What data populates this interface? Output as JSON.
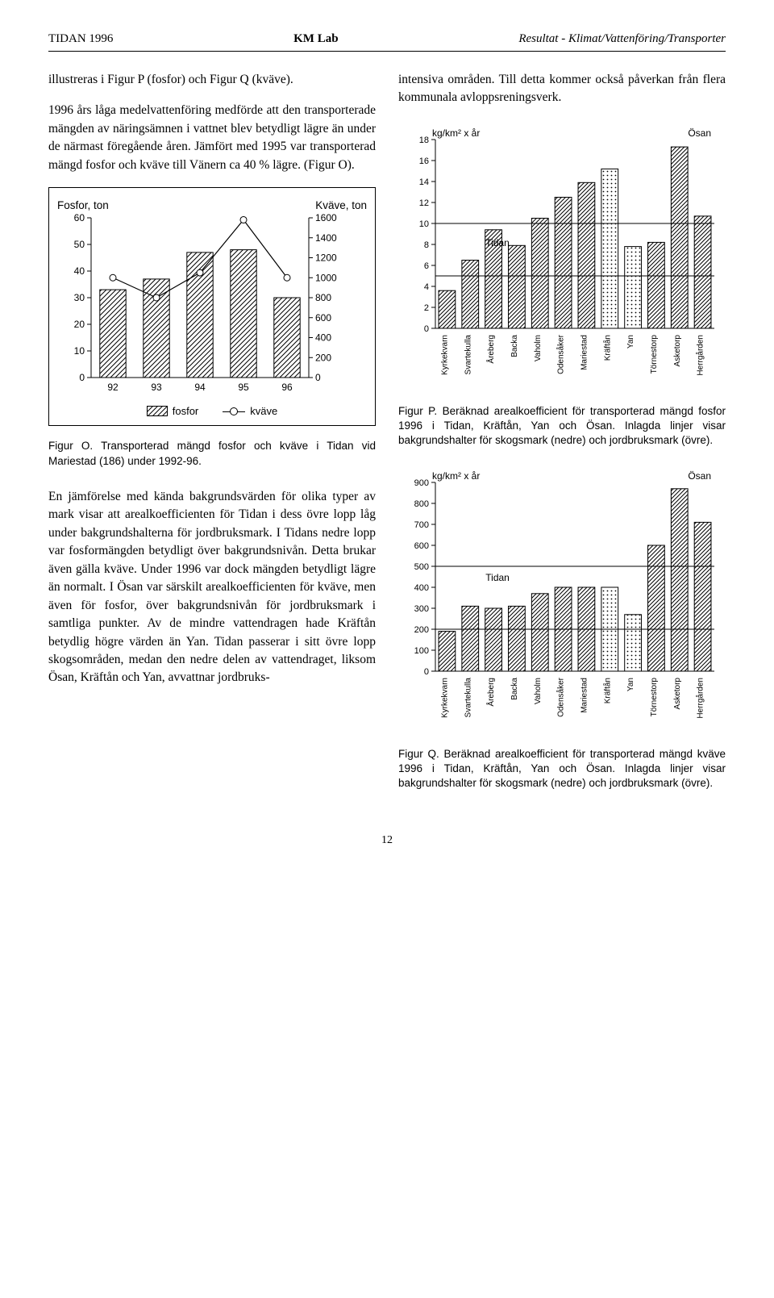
{
  "header": {
    "left": "TIDAN 1996",
    "center": "KM Lab",
    "right": "Resultat - Klimat/Vattenföring/Transporter"
  },
  "col_left": {
    "para1": "illustreras i Figur P (fosfor) och Figur Q (kväve).",
    "para2": "1996 års låga medelvattenföring medförde att den transporterade mängden av näringsämnen i vattnet blev betydligt lägre än under de närmast föregående åren. Jämfört med 1995 var transporterad mängd fosfor och kväve till Vänern ca 40 % lägre. (Figur O).",
    "chartO": {
      "left_axis_label": "Fosfor, ton",
      "right_axis_label": "Kväve, ton",
      "years": [
        "92",
        "93",
        "94",
        "95",
        "96"
      ],
      "fosfor_values": [
        33,
        37,
        47,
        48,
        30
      ],
      "kvave_values": [
        1000,
        800,
        1050,
        1580,
        1000
      ],
      "left_ylim": [
        0,
        60
      ],
      "left_ytick_step": 10,
      "right_ylim": [
        0,
        1600
      ],
      "right_ytick_step": 200,
      "bar_pattern": "diag-hatch",
      "legend": {
        "bar": "fosfor",
        "line": "kväve"
      },
      "stroke": "#000000",
      "bg": "#ffffff"
    },
    "captionO": "Figur O. Transporterad mängd fosfor och kväve i Tidan vid Mariestad (186) under 1992-96.",
    "para3": "En jämförelse med kända bakgrundsvärden för olika typer av mark visar att arealkoefficienten för Tidan i dess övre lopp låg under bakgrundshalterna för jordbruksmark. I Tidans nedre lopp var fosformängden betydligt över bakgrundsnivån. Detta brukar även gälla kväve. Under 1996 var dock mängden betydligt lägre än normalt. I Ösan var särskilt arealkoefficienten för kväve, men även för fosfor, över bakgrundsnivån för jordbruksmark i samtliga punkter. Av de mindre vattendragen hade Kräftån betydlig högre värden än Yan. Tidan passerar i sitt övre lopp skogsområden, medan den nedre delen av vattendraget, liksom Ösan, Kräftån och Yan, avvattnar jordbruks-"
  },
  "col_right": {
    "para1": "intensiva områden. Till detta kommer också påverkan från flera kommunala avloppsreningsverk.",
    "chartP": {
      "ylabel": "kg/km² x år",
      "annot_right": "Ösan",
      "annot_inside": "Tidan",
      "categories": [
        "Kyrkekvarn",
        "Svartekulla",
        "Åreberg",
        "Backa",
        "Vaholm",
        "Odensåker",
        "Mariestad",
        "Kräftån",
        "Yan",
        "Törnestorp",
        "Asketorp",
        "Herrgården"
      ],
      "values": [
        3.6,
        6.5,
        9.4,
        7.9,
        10.5,
        12.5,
        13.9,
        15.2,
        7.8,
        8.2,
        17.3,
        10.7
      ],
      "ylim": [
        0,
        18
      ],
      "ytick_step": 2,
      "ref_lines": [
        5,
        10
      ],
      "patterns": [
        "h",
        "h",
        "h",
        "h",
        "h",
        "h",
        "h",
        "d",
        "d",
        "h",
        "h",
        "h"
      ],
      "stroke": "#000000"
    },
    "captionP": "Figur P. Beräknad arealkoefficient för transporterad mängd fosfor 1996 i Tidan, Kräftån, Yan och Ösan. Inlagda linjer visar bakgrundshalter för skogsmark (nedre) och jordbruksmark (övre).",
    "chartQ": {
      "ylabel": "kg/km² x år",
      "annot_right": "Ösan",
      "annot_inside": "Tidan",
      "categories": [
        "Kyrkekvarn",
        "Svartekulla",
        "Åreberg",
        "Backa",
        "Vaholm",
        "Odensåker",
        "Mariestad",
        "Kräftån",
        "Yan",
        "Törnestorp",
        "Asketorp",
        "Herrgården"
      ],
      "values": [
        190,
        310,
        300,
        310,
        370,
        400,
        400,
        400,
        270,
        600,
        870,
        710
      ],
      "ylim": [
        0,
        900
      ],
      "ytick_step": 100,
      "ref_lines": [
        200,
        500
      ],
      "patterns": [
        "h",
        "h",
        "h",
        "h",
        "h",
        "h",
        "h",
        "d",
        "d",
        "h",
        "h",
        "h"
      ],
      "stroke": "#000000"
    },
    "captionQ": "Figur Q. Beräknad arealkoefficient för transporterad mängd kväve 1996 i Tidan, Kräftån, Yan och Ösan. Inlagda linjer visar bakgrundshalter för skogsmark (nedre) och jordbruksmark (övre)."
  },
  "pagenum": "12"
}
